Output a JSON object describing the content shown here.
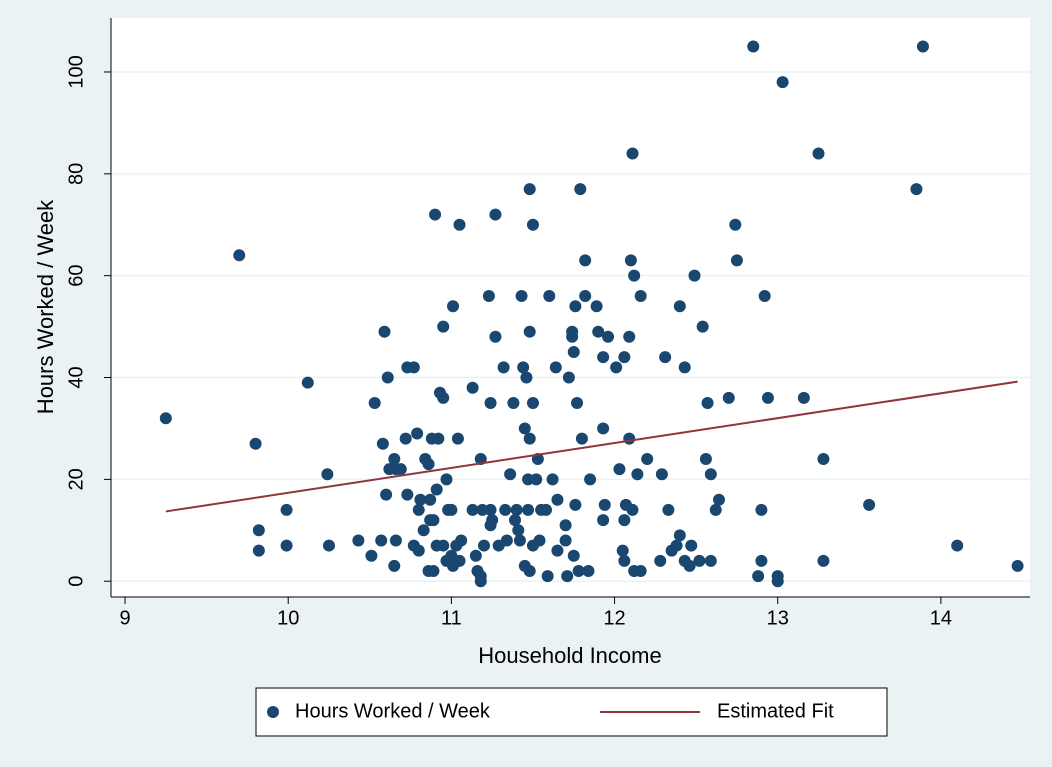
{
  "chart_data": {
    "type": "scatter",
    "x_label": "Household Income",
    "y_label": "Hours Worked / Week",
    "xlim": [
      8.914,
      14.546
    ],
    "ylim": [
      -3.1,
      110.6
    ],
    "xticks": [
      9,
      10,
      11,
      12,
      13,
      14
    ],
    "yticks": [
      0,
      20,
      40,
      60,
      80,
      100
    ],
    "grid": true,
    "legend": "bottom",
    "series": [
      {
        "name": "Hours Worked / Week",
        "type": "scatter",
        "color": "#1a476f",
        "x": [
          9.25,
          9.7,
          9.8,
          9.82,
          9.82,
          9.99,
          9.99,
          10.12,
          10.24,
          10.25,
          10.43,
          10.51,
          10.53,
          10.57,
          10.58,
          10.59,
          10.61,
          10.6,
          10.62,
          10.65,
          10.66,
          10.66,
          10.65,
          10.69,
          10.72,
          10.73,
          10.73,
          10.77,
          10.77,
          10.79,
          10.8,
          10.8,
          10.81,
          10.83,
          10.84,
          10.86,
          10.86,
          10.87,
          10.87,
          10.88,
          10.89,
          10.89,
          10.9,
          10.91,
          10.91,
          10.92,
          10.93,
          10.95,
          10.95,
          10.95,
          10.97,
          10.97,
          10.98,
          11.0,
          11.0,
          11.01,
          11.01,
          11.03,
          11.04,
          11.05,
          11.05,
          11.06,
          11.13,
          11.13,
          11.15,
          11.16,
          11.18,
          11.18,
          11.18,
          11.19,
          11.2,
          11.23,
          11.24,
          11.24,
          11.24,
          11.25,
          11.27,
          11.27,
          11.29,
          11.32,
          11.33,
          11.34,
          11.36,
          11.38,
          11.39,
          11.4,
          11.41,
          11.42,
          11.43,
          11.44,
          11.45,
          11.45,
          11.46,
          11.47,
          11.47,
          11.48,
          11.48,
          11.48,
          11.48,
          11.5,
          11.5,
          11.5,
          11.52,
          11.53,
          11.54,
          11.55,
          11.58,
          11.59,
          11.6,
          11.62,
          11.64,
          11.65,
          11.65,
          11.7,
          11.7,
          11.71,
          11.72,
          11.74,
          11.74,
          11.75,
          11.75,
          11.76,
          11.76,
          11.77,
          11.78,
          11.79,
          11.8,
          11.82,
          11.82,
          11.84,
          11.85,
          11.89,
          11.9,
          11.93,
          11.93,
          11.93,
          11.94,
          11.96,
          12.01,
          12.03,
          12.05,
          12.06,
          12.06,
          12.06,
          12.07,
          12.09,
          12.09,
          12.1,
          12.11,
          12.11,
          12.12,
          12.12,
          12.14,
          12.16,
          12.16,
          12.2,
          12.28,
          12.29,
          12.31,
          12.33,
          12.35,
          12.38,
          12.4,
          12.4,
          12.43,
          12.43,
          12.46,
          12.47,
          12.49,
          12.52,
          12.54,
          12.56,
          12.57,
          12.59,
          12.59,
          12.62,
          12.64,
          12.7,
          12.74,
          12.75,
          12.85,
          13.03,
          12.92,
          12.94,
          13.16,
          13.25,
          13.28,
          13.28,
          12.9,
          12.9,
          12.88,
          13.0,
          13.0,
          13.56,
          13.85,
          13.89,
          14.1,
          14.47
        ],
        "values": [
          32,
          64,
          27,
          10,
          6,
          14,
          7,
          39,
          21,
          7,
          8,
          5,
          35,
          8,
          27,
          49,
          40,
          17,
          22,
          24,
          22,
          8,
          3,
          22,
          28,
          17,
          42,
          42,
          7,
          29,
          14,
          6,
          16,
          10,
          24,
          23,
          2,
          12,
          16,
          28,
          2,
          12,
          72,
          7,
          18,
          28,
          37,
          36,
          50,
          7,
          20,
          4,
          14,
          14,
          5,
          3,
          54,
          7,
          28,
          70,
          4,
          8,
          38,
          14,
          5,
          2,
          24,
          1,
          0,
          14,
          7,
          56,
          35,
          14,
          11,
          12,
          48,
          72,
          7,
          42,
          14,
          8,
          21,
          35,
          12,
          14,
          10,
          8,
          56,
          42,
          3,
          30,
          40,
          20,
          14,
          28,
          49,
          77,
          2,
          70,
          7,
          35,
          20,
          24,
          8,
          14,
          14,
          1,
          56,
          20,
          42,
          6,
          16,
          8,
          11,
          1,
          40,
          49,
          48,
          45,
          5,
          15,
          54,
          35,
          2,
          77,
          28,
          63,
          56,
          2,
          20,
          54,
          49,
          30,
          44,
          12,
          15,
          48,
          42,
          22,
          6,
          44,
          4,
          12,
          15,
          48,
          28,
          63,
          84,
          14,
          60,
          2,
          21,
          56,
          2,
          24,
          4,
          21,
          44,
          14,
          6,
          7,
          9,
          54,
          42,
          4,
          3,
          7,
          60,
          4,
          50,
          24,
          35,
          21,
          4,
          14,
          16,
          36,
          70,
          63,
          105,
          98,
          56,
          36,
          36,
          84,
          24,
          4,
          14,
          4,
          1,
          1,
          0,
          15,
          77,
          105,
          7,
          3
        ]
      },
      {
        "name": "Estimated Fit",
        "type": "line",
        "color": "#90353b",
        "x": [
          9.25,
          14.47
        ],
        "values": [
          13.7,
          39.2
        ]
      }
    ]
  }
}
